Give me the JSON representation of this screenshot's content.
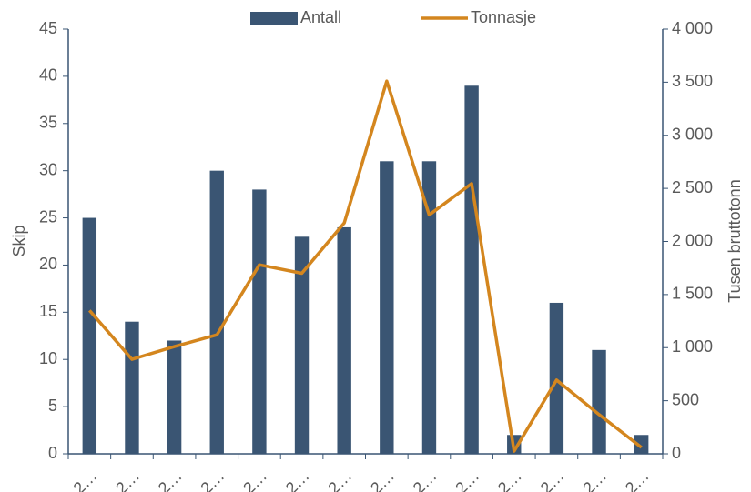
{
  "chart_data": {
    "type": "bar-line",
    "categories": [
      "2…",
      "2…",
      "2…",
      "2…",
      "2…",
      "2…",
      "2…",
      "2…",
      "2…",
      "2…",
      "2…",
      "2…",
      "2…",
      "2…"
    ],
    "series": [
      {
        "name": "Antall",
        "color": "#3a5573",
        "type": "bar",
        "values": [
          25,
          14,
          12,
          30,
          28,
          23,
          24,
          31,
          31,
          39,
          2,
          16,
          11,
          2
        ]
      },
      {
        "name": "Tonnasje",
        "color": "#d4861e",
        "type": "line",
        "axis": "y2",
        "values": [
          1350,
          890,
          1010,
          1120,
          1780,
          1700,
          2175,
          3510,
          2250,
          2545,
          25,
          695,
          370,
          60
        ]
      }
    ],
    "ylabel": "Skip",
    "y2label": "Tusen bruttotonn",
    "ylim": [
      0,
      45
    ],
    "yticks": [
      0,
      5,
      10,
      15,
      20,
      25,
      30,
      35,
      40,
      45
    ],
    "y2lim": [
      0,
      4000
    ],
    "y2ticks": [
      0,
      500,
      {
        "value": 1000,
        "label": "1 000"
      },
      {
        "value": 1500,
        "label": "1 500"
      },
      {
        "value": 2000,
        "label": "2 000"
      },
      {
        "value": 2500,
        "label": "2 500"
      },
      {
        "value": 3000,
        "label": "3 000"
      },
      {
        "value": 3500,
        "label": "3 500"
      },
      {
        "value": 4000,
        "label": "4 000"
      }
    ],
    "legend": "top"
  }
}
